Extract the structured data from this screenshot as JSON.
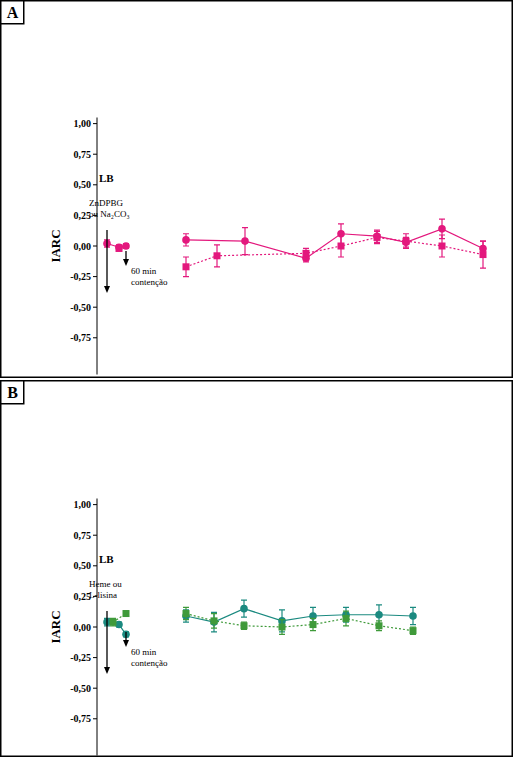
{
  "chart_data": [
    {
      "type": "line",
      "title": "A",
      "y_label": "IARC",
      "annotations": [
        "LB",
        [
          "ZnDPBG",
          "ou Na₂CO₃"
        ],
        [
          "60 min",
          "contenção"
        ]
      ],
      "xlim": [
        0,
        413
      ],
      "ylim": [
        -1.05,
        1.05
      ],
      "yticks": [
        {
          "value": 1,
          "label": "1,00"
        },
        {
          "value": 0.75,
          "label": "0,75"
        },
        {
          "value": 0.5,
          "label": "0,50"
        },
        {
          "value": 0.25,
          "label": "0,25"
        },
        {
          "value": 0,
          "label": "0,00"
        },
        {
          "value": -0.25,
          "label": "-0,25"
        },
        {
          "value": -0.5,
          "label": "-0,50"
        },
        {
          "value": -0.75,
          "label": "-0,75"
        }
      ],
      "tick_labels": "y",
      "grid": false,
      "series": [
        {
          "color": "#e3187d",
          "marker": "circle",
          "line_style": "solid",
          "x": [
            10,
            22,
            29,
            60,
            89,
            148,
            209,
            244,
            280,
            309,
            345,
            386
          ],
          "values": [
            0.02,
            -0.01,
            0.0,
            null,
            0.05,
            0.04,
            -0.1,
            0.1,
            0.08,
            0.03,
            0.14,
            -0.02
          ],
          "errors": [
            0.03,
            0.02,
            0.02,
            null,
            0.05,
            0.11,
            0.03,
            0.08,
            0.05,
            0.04,
            0.08,
            0.06
          ]
        },
        {
          "color": "#e3187d",
          "marker": "square",
          "line_style": "dotted",
          "x": [
            22,
            60,
            89,
            120,
            209,
            244,
            280,
            309,
            345,
            386
          ],
          "values": [
            -0.02,
            null,
            -0.17,
            -0.08,
            -0.06,
            0.0,
            0.07,
            0.04,
            0.0,
            -0.07
          ],
          "errors": [
            0.02,
            null,
            0.08,
            0.09,
            0.04,
            0.09,
            0.05,
            0.06,
            0.09,
            0.11
          ]
        }
      ]
    },
    {
      "type": "line",
      "title": "B",
      "y_label": "IARC",
      "annotations": [
        "LB",
        [
          "Heme ou",
          "L-lisina"
        ],
        [
          "60 min",
          "contenção"
        ]
      ],
      "xlim": [
        0,
        413
      ],
      "ylim": [
        -1.05,
        1.05
      ],
      "yticks": [
        {
          "value": 1,
          "label": "1,00"
        },
        {
          "value": 0.75,
          "label": "0,75"
        },
        {
          "value": 0.5,
          "label": "0,50"
        },
        {
          "value": 0.25,
          "label": "0,25"
        },
        {
          "value": 0,
          "label": "0,00"
        },
        {
          "value": -0.25,
          "label": "-0,25"
        },
        {
          "value": -0.5,
          "label": "-0,50"
        },
        {
          "value": -0.75,
          "label": "-0,75"
        }
      ],
      "tick_labels": "y",
      "grid": false,
      "series": [
        {
          "color": "#1b8a80",
          "marker": "circle",
          "line_style": "solid",
          "x": [
            10,
            22,
            29,
            60,
            89,
            117,
            147,
            185,
            216,
            249,
            282,
            316
          ],
          "values": [
            0.04,
            0.02,
            -0.06,
            null,
            0.09,
            0.04,
            0.15,
            0.05,
            0.09,
            0.1,
            0.1,
            0.09
          ],
          "errors": [
            0.03,
            0.02,
            0.02,
            null,
            0.05,
            0.08,
            0.07,
            0.09,
            0.07,
            0.06,
            0.08,
            0.07
          ]
        },
        {
          "color": "#3f9a3a",
          "marker": "square",
          "line_style": "dotted",
          "x": [
            16,
            29,
            60,
            89,
            117,
            147,
            185,
            216,
            249,
            282,
            316
          ],
          "values": [
            0.04,
            0.11,
            null,
            0.11,
            0.05,
            0.01,
            0.0,
            0.02,
            0.07,
            0.01,
            -0.03
          ],
          "errors": [
            0.03,
            0.02,
            null,
            0.05,
            0.06,
            0.03,
            0.06,
            0.05,
            0.06,
            0.04,
            0.03
          ]
        }
      ]
    }
  ]
}
